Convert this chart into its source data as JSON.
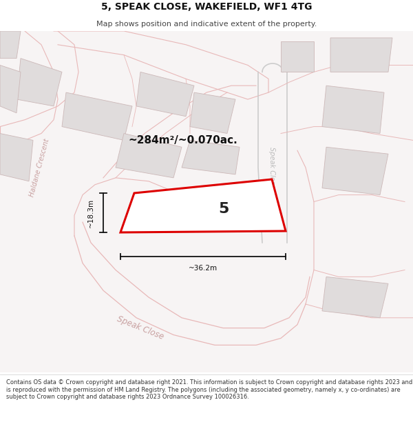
{
  "title": "5, SPEAK CLOSE, WAKEFIELD, WF1 4TG",
  "subtitle": "Map shows position and indicative extent of the property.",
  "area_label": "~284m²/~0.070ac.",
  "plot_number": "5",
  "width_label": "~36.2m",
  "height_label": "~18.3m",
  "footer": "Contains OS data © Crown copyright and database right 2021. This information is subject to Crown copyright and database rights 2023 and is reproduced with the permission of HM Land Registry. The polygons (including the associated geometry, namely x, y co-ordinates) are subject to Crown copyright and database rights 2023 Ordnance Survey 100026316.",
  "map_bg": "#f7f4f4",
  "road_line_color": "#e8b8b8",
  "road_line_color2": "#cccccc",
  "building_fc": "#e0dcdc",
  "building_ec": "#ccb8b8",
  "plot_outline": "#dd0000",
  "plot_fill": "#ffffff",
  "dim_color": "#111111",
  "street_label_color": "#c8a0a0",
  "title_color": "#111111",
  "subtitle_color": "#444444",
  "footer_color": "#333333",
  "speak_close_cul_color": "#bbbbbb"
}
